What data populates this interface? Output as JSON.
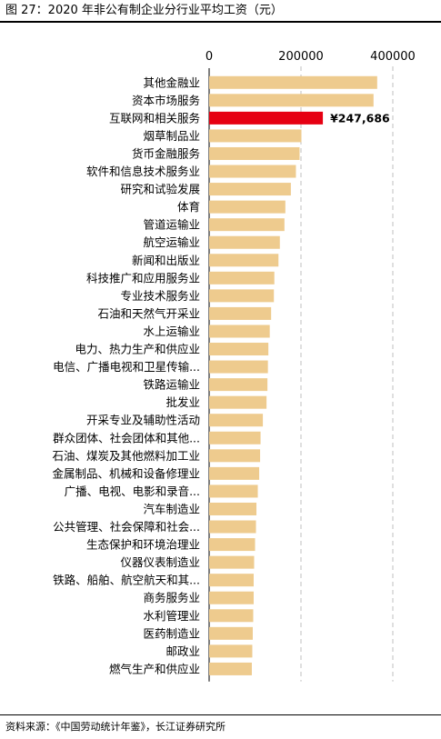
{
  "figure": {
    "title": "图 27：2020 年非公有制企业分行业平均工资（元）",
    "source": "资料来源：《中国劳动统计年鉴》，长江证券研究所"
  },
  "colors": {
    "bar": "#EECB8E",
    "highlight": "#E60012",
    "grid": "#BFBFBF",
    "axis": "#000000"
  },
  "chart_data": {
    "type": "bar",
    "orientation": "horizontal",
    "xlim": [
      0,
      400000
    ],
    "xticks": [
      "0",
      "200000",
      "400000"
    ],
    "xtick_values": [
      0,
      200000,
      400000
    ],
    "grid": "vertical dashed",
    "categories": [
      "其他金融业",
      "资本市场服务",
      "互联网和相关服务",
      "烟草制品业",
      "货币金融服务",
      "软件和信息技术服务业",
      "研究和试验发展",
      "体育",
      "管道运输业",
      "航空运输业",
      "新闻和出版业",
      "科技推广和应用服务业",
      "专业技术服务业",
      "石油和天然气开采业",
      "水上运输业",
      "电力、热力生产和供应业",
      "电信、广播电视和卫星传输...",
      "铁路运输业",
      "批发业",
      "开采专业及辅助性活动",
      "群众团体、社会团体和其他...",
      "石油、煤炭及其他燃料加工业",
      "金属制品、机械和设备修理业",
      "广播、电视、电影和录音...",
      "汽车制造业",
      "公共管理、社会保障和社会...",
      "生态保护和环境治理业",
      "仪器仪表制造业",
      "铁路、船舶、航空航天和其...",
      "商务服务业",
      "水利管理业",
      "医药制造业",
      "邮政业",
      "燃气生产和供应业"
    ],
    "values": [
      366000,
      358000,
      247686,
      201000,
      197000,
      189000,
      178000,
      166000,
      164000,
      154000,
      151000,
      142000,
      141000,
      135000,
      132000,
      129000,
      128000,
      127000,
      125000,
      117000,
      112000,
      111000,
      109000,
      106000,
      103000,
      102000,
      100000,
      98000,
      97000,
      97000,
      96000,
      95000,
      94000,
      93000
    ],
    "highlight_index": 2,
    "annotations": [
      {
        "index": 2,
        "text": "¥247,686"
      }
    ]
  }
}
